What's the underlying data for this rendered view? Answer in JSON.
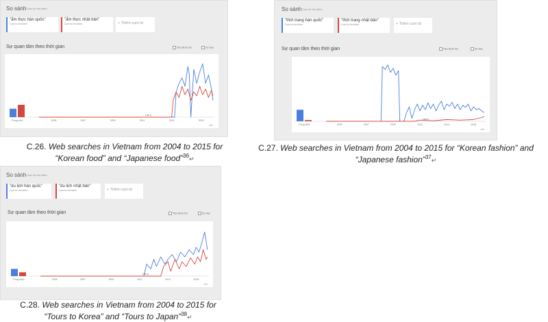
{
  "panels": [
    {
      "title": "So sánh",
      "subtitle": "Cụm từ tìm kiếm",
      "terms": [
        {
          "label": "\"ẩm thực hàn quốc\"",
          "sub": "Cụm từ tìm kiếm"
        },
        {
          "label": "\"ẩm thực nhật bản\"",
          "sub": "Cụm từ tìm kiếm"
        }
      ],
      "add_label": "+ Thêm cụm từ",
      "interest_label": "Sự quan tâm theo thời gian",
      "opt_headlines": "Tiêu đề tin tức",
      "opt_forecast": "Dự báo",
      "caption_prefix": "C.26.",
      "caption_text": "Web searches in Vietnam from 2004 to 2015 for “Korean food” and “Japanese food”",
      "caption_ref": "36"
    },
    {
      "title": "So sánh",
      "subtitle": "Cụm từ tìm kiếm",
      "terms": [
        {
          "label": "\"thời trang hàn quốc\"",
          "sub": "Cụm từ tìm kiếm"
        },
        {
          "label": "\"thời trang nhật bản\"",
          "sub": "Cụm từ tìm kiếm"
        }
      ],
      "add_label": "+ Thêm cụm từ",
      "interest_label": "Sự quan tâm theo thời gian",
      "opt_headlines": "Tiêu đề tin tức",
      "opt_forecast": "Dự báo",
      "caption_prefix": "C.27.",
      "caption_text": "Web searches in Vietnam from 2004 to 2015 for “Korean fashion” and “Japanese fashion”",
      "caption_ref": "37"
    },
    {
      "title": "So sánh",
      "subtitle": "Cụm từ tìm kiếm",
      "terms": [
        {
          "label": "\"du lịch hàn quốc\"",
          "sub": "Cụm từ tìm kiếm"
        },
        {
          "label": "\"du lịch nhật bản\"",
          "sub": "Cụm từ tìm kiếm"
        }
      ],
      "add_label": "+ Thêm cụm từ",
      "interest_label": "Sự quan tâm theo thời gian",
      "opt_headlines": "Tiêu đề tin tức",
      "opt_forecast": "Dự báo",
      "caption_prefix": "C.28.",
      "caption_text": "Web searches in Vietnam from 2004 to 2015 for “Tours to Korea” and “Tours to Japan”",
      "caption_ref": "38"
    }
  ],
  "colors": {
    "korea": "#4a7fe0",
    "japan": "#d5473a"
  },
  "chart_data": [
    {
      "type": "line",
      "x_ticks": [
        "2005",
        "2007",
        "2009",
        "2011",
        "2013",
        "2015"
      ],
      "avg_label": "Trung bình",
      "note_label": "Lưu ý",
      "embed_label": "</>",
      "ylim": [
        0,
        100
      ],
      "xlim": [
        2004,
        2015.9
      ],
      "averages": {
        "korea": 15,
        "japan": 22
      },
      "series": [
        {
          "name": "\"ẩm thực hàn quốc\"",
          "color_key": "korea",
          "x": [
            2004,
            2013.2,
            2013.3,
            2013.5,
            2013.7,
            2013.9,
            2014.1,
            2014.2,
            2014.3,
            2014.5,
            2014.7,
            2014.9,
            2015.1,
            2015.3,
            2015.5,
            2015.7,
            2015.8
          ],
          "y": [
            0,
            0,
            45,
            60,
            70,
            55,
            90,
            75,
            0,
            85,
            60,
            80,
            95,
            60,
            75,
            50,
            30
          ]
        },
        {
          "name": "\"ẩm thực nhật bản\"",
          "color_key": "japan",
          "x": [
            2004,
            2013.0,
            2013.1,
            2013.3,
            2013.5,
            2013.7,
            2013.9,
            2014.1,
            2014.3,
            2014.5,
            2014.7,
            2014.9,
            2015.1,
            2015.3,
            2015.5,
            2015.7,
            2015.8
          ],
          "y": [
            0,
            0,
            30,
            45,
            35,
            55,
            40,
            50,
            30,
            45,
            38,
            55,
            40,
            50,
            35,
            48,
            38
          ]
        }
      ]
    },
    {
      "type": "line",
      "x_ticks": [
        "2005",
        "2007",
        "2009",
        "2011",
        "2013",
        "2015"
      ],
      "avg_label": "Trung bình",
      "note_label": "Lưu ý",
      "embed_label": "</>",
      "ylim": [
        0,
        100
      ],
      "xlim": [
        2004,
        2015.9
      ],
      "averages": {
        "korea": 20,
        "japan": 2
      },
      "series": [
        {
          "name": "\"thời trang hàn quốc\"",
          "color_key": "korea",
          "x": [
            2004,
            2008.1,
            2008.2,
            2008.4,
            2008.6,
            2008.8,
            2009.0,
            2009.2,
            2009.4,
            2009.5,
            2009.8,
            2010.0,
            2010.2,
            2010.4,
            2010.6,
            2010.8,
            2011.0,
            2011.2,
            2011.4,
            2011.6,
            2011.8,
            2012.0,
            2012.2,
            2012.4,
            2012.6,
            2012.8,
            2013.0,
            2013.2,
            2013.4,
            2013.6,
            2013.8,
            2014.0,
            2014.2,
            2014.4,
            2014.6,
            2014.8,
            2015.0,
            2015.2,
            2015.4,
            2015.6,
            2015.8
          ],
          "y": [
            0,
            0,
            95,
            90,
            98,
            85,
            92,
            80,
            88,
            0,
            0,
            15,
            25,
            5,
            20,
            30,
            18,
            28,
            20,
            32,
            22,
            30,
            18,
            28,
            35,
            20,
            30,
            26,
            33,
            22,
            30,
            20,
            28,
            24,
            30,
            18,
            25,
            20,
            22,
            18,
            15
          ]
        },
        {
          "name": "\"thời trang nhật bản\"",
          "color_key": "japan",
          "x": [
            2004,
            2010.6,
            2011.0,
            2012.0,
            2013.0,
            2014.0,
            2015.0,
            2015.5,
            2015.8
          ],
          "y": [
            0,
            0,
            2,
            1,
            3,
            2,
            3,
            6,
            8
          ]
        }
      ]
    },
    {
      "type": "line",
      "x_ticks": [
        "2005",
        "2007",
        "2009",
        "2011",
        "2013",
        "2015"
      ],
      "avg_label": "Trung bình",
      "note_label": "Lưu ý",
      "embed_label": "</>",
      "ylim": [
        0,
        100
      ],
      "xlim": [
        2004,
        2015.9
      ],
      "averages": {
        "korea": 15,
        "japan": 8
      },
      "series": [
        {
          "name": "\"du lịch hàn quốc\"",
          "color_key": "korea",
          "x": [
            2004,
            2011.3,
            2011.5,
            2011.8,
            2012.0,
            2012.2,
            2012.5,
            2012.8,
            2013.0,
            2013.3,
            2013.6,
            2013.9,
            2014.2,
            2014.5,
            2014.8,
            2015.0,
            2015.2,
            2015.4,
            2015.6,
            2015.8
          ],
          "y": [
            0,
            0,
            25,
            15,
            35,
            20,
            40,
            25,
            35,
            45,
            30,
            50,
            40,
            55,
            45,
            60,
            50,
            70,
            92,
            55
          ]
        },
        {
          "name": "\"du lịch nhật bản\"",
          "color_key": "japan",
          "x": [
            2004,
            2012.5,
            2012.7,
            2013.0,
            2013.2,
            2013.5,
            2013.8,
            2014.0,
            2014.3,
            2014.6,
            2014.9,
            2015.1,
            2015.3,
            2015.5,
            2015.7,
            2015.8
          ],
          "y": [
            0,
            0,
            20,
            30,
            10,
            35,
            15,
            30,
            20,
            38,
            25,
            40,
            30,
            55,
            35,
            40
          ]
        }
      ]
    }
  ]
}
